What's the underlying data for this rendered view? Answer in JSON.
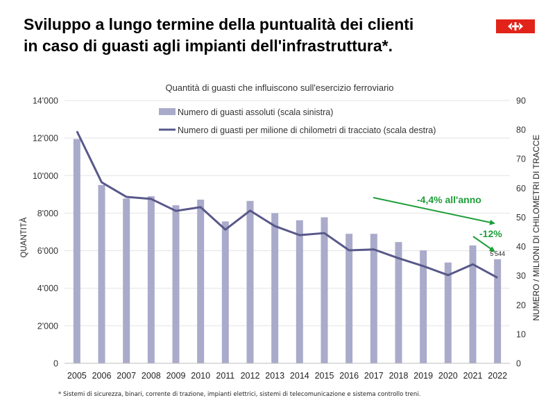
{
  "headline": {
    "line1": "Sviluppo a lungo termine della puntualità dei clienti",
    "line2": "in caso di guasti agli impianti dell'infrastruttura*."
  },
  "logo": {
    "name": "sbb-logo-icon"
  },
  "footnote": "* Sistemi di sicurezza, binari, corrente di trazione, impianti elettrici, sistemi di telecomunicazione e sistema controllo treni.",
  "chart_data": {
    "type": "bar",
    "title": "Quantità di guasti che influiscono sull'esercizio ferroviario",
    "ylabel": "QUANTITÀ",
    "y2label": "NUMERO / MILIONI DI CHILOMETRI DI TRACCE",
    "ylim": [
      0,
      14000
    ],
    "y2lim": [
      0,
      90
    ],
    "y_ticks": [
      "0",
      "2'000",
      "4'000",
      "6'000",
      "8'000",
      "10'000",
      "12'000",
      "14'000"
    ],
    "y2_ticks": [
      "0",
      "10",
      "20",
      "30",
      "40",
      "50",
      "60",
      "70",
      "80",
      "90"
    ],
    "categories": [
      "2005",
      "2006",
      "2007",
      "2008",
      "2009",
      "2010",
      "2011",
      "2012",
      "2013",
      "2014",
      "2015",
      "2016",
      "2017",
      "2018",
      "2019",
      "2020",
      "2021",
      "2022"
    ],
    "grid": true,
    "legend_position": "top",
    "series": [
      {
        "name": "Numero di guasti assoluti (scala sinistra)",
        "type": "bar",
        "axis": "left",
        "color": "#aaaacb",
        "values": [
          11950,
          9500,
          8780,
          8900,
          8420,
          8720,
          7560,
          8650,
          8000,
          7620,
          7780,
          6900,
          6900,
          6460,
          6020,
          5370,
          6280,
          5544
        ]
      },
      {
        "name": "Numero di guasti per milione di chilometri di tracciato (scala destra)",
        "type": "line",
        "axis": "right",
        "color": "#58588a",
        "values": [
          79.5,
          62.0,
          57.0,
          56.3,
          52.2,
          53.5,
          45.8,
          52.3,
          47.0,
          43.9,
          44.6,
          38.7,
          39.0,
          36.0,
          33.3,
          30.2,
          33.9,
          29.3
        ]
      }
    ],
    "data_label": {
      "category": "2022",
      "text": "5'544"
    },
    "annotations": [
      {
        "text": "-4,4% all'anno",
        "color": "#1e9e3a"
      },
      {
        "text": "-12%",
        "color": "#1e9e3a"
      }
    ]
  }
}
